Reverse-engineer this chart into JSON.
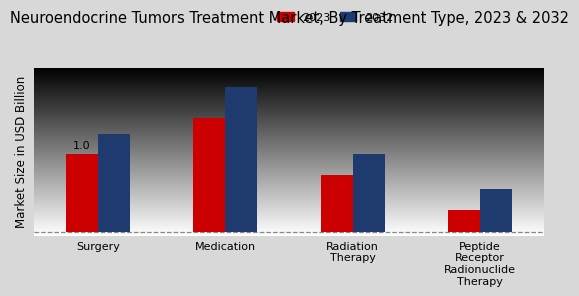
{
  "title": "Neuroendocrine Tumors Treatment Market, By Treatment Type, 2023 & 2032",
  "ylabel": "Market Size in USD Billion",
  "categories": [
    "Surgery",
    "Medication",
    "Radiation\nTherapy",
    "Peptide\nReceptor\nRadionuclide\nTherapy"
  ],
  "values_2023": [
    1.0,
    1.45,
    0.72,
    0.28
  ],
  "values_2032": [
    1.25,
    1.85,
    1.0,
    0.55
  ],
  "color_2023": "#cc0000",
  "color_2032": "#1e3a6e",
  "bar_width": 0.25,
  "annotation_text": "1.0",
  "background_color": "#dcdcdc",
  "legend_labels": [
    "2023",
    "2032"
  ],
  "title_fontsize": 10.5,
  "axis_label_fontsize": 8.5,
  "tick_fontsize": 8
}
